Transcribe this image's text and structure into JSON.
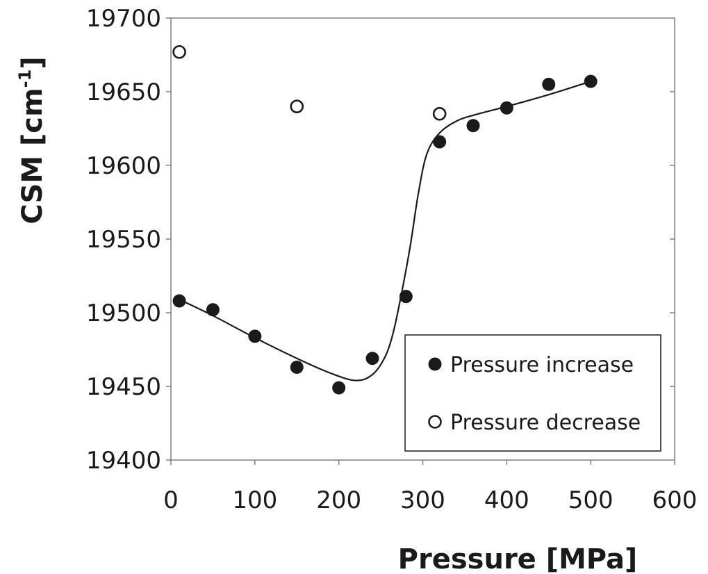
{
  "chart_data": {
    "type": "scatter",
    "title": "",
    "xlabel": "Pressure [MPa]",
    "ylabel_main": "CSM [cm",
    "ylabel_sup": "-1",
    "ylabel_close": "]",
    "xlim": [
      0,
      600
    ],
    "ylim": [
      19400,
      19700
    ],
    "xticks": [
      0,
      100,
      200,
      300,
      400,
      500,
      600
    ],
    "yticks": [
      19400,
      19450,
      19500,
      19550,
      19600,
      19650,
      19700
    ],
    "grid": false,
    "legend_position": "bottom-right",
    "series": [
      {
        "name": "Pressure increase",
        "marker": "filled-circle",
        "color": "#1a1a1a",
        "points": [
          {
            "x": 10,
            "y": 19508
          },
          {
            "x": 50,
            "y": 19502
          },
          {
            "x": 100,
            "y": 19484
          },
          {
            "x": 150,
            "y": 19463
          },
          {
            "x": 200,
            "y": 19449
          },
          {
            "x": 240,
            "y": 19469
          },
          {
            "x": 280,
            "y": 19511
          },
          {
            "x": 320,
            "y": 19616
          },
          {
            "x": 360,
            "y": 19627
          },
          {
            "x": 400,
            "y": 19639
          },
          {
            "x": 450,
            "y": 19655
          },
          {
            "x": 500,
            "y": 19657
          }
        ]
      },
      {
        "name": "Pressure decrease",
        "marker": "open-circle",
        "color": "#1a1a1a",
        "points": [
          {
            "x": 10,
            "y": 19677
          },
          {
            "x": 150,
            "y": 19640
          },
          {
            "x": 320,
            "y": 19635
          }
        ]
      }
    ],
    "fit_curve": {
      "style": "solid-line",
      "color": "#1a1a1a",
      "points": [
        {
          "x": 10,
          "y": 19509
        },
        {
          "x": 50,
          "y": 19498
        },
        {
          "x": 100,
          "y": 19483
        },
        {
          "x": 150,
          "y": 19469
        },
        {
          "x": 190,
          "y": 19459
        },
        {
          "x": 220,
          "y": 19454
        },
        {
          "x": 240,
          "y": 19458
        },
        {
          "x": 255,
          "y": 19470
        },
        {
          "x": 265,
          "y": 19487
        },
        {
          "x": 275,
          "y": 19514
        },
        {
          "x": 285,
          "y": 19545
        },
        {
          "x": 295,
          "y": 19582
        },
        {
          "x": 305,
          "y": 19608
        },
        {
          "x": 320,
          "y": 19622
        },
        {
          "x": 340,
          "y": 19630
        },
        {
          "x": 360,
          "y": 19634
        },
        {
          "x": 400,
          "y": 19640
        },
        {
          "x": 450,
          "y": 19648
        },
        {
          "x": 500,
          "y": 19657
        }
      ]
    }
  }
}
